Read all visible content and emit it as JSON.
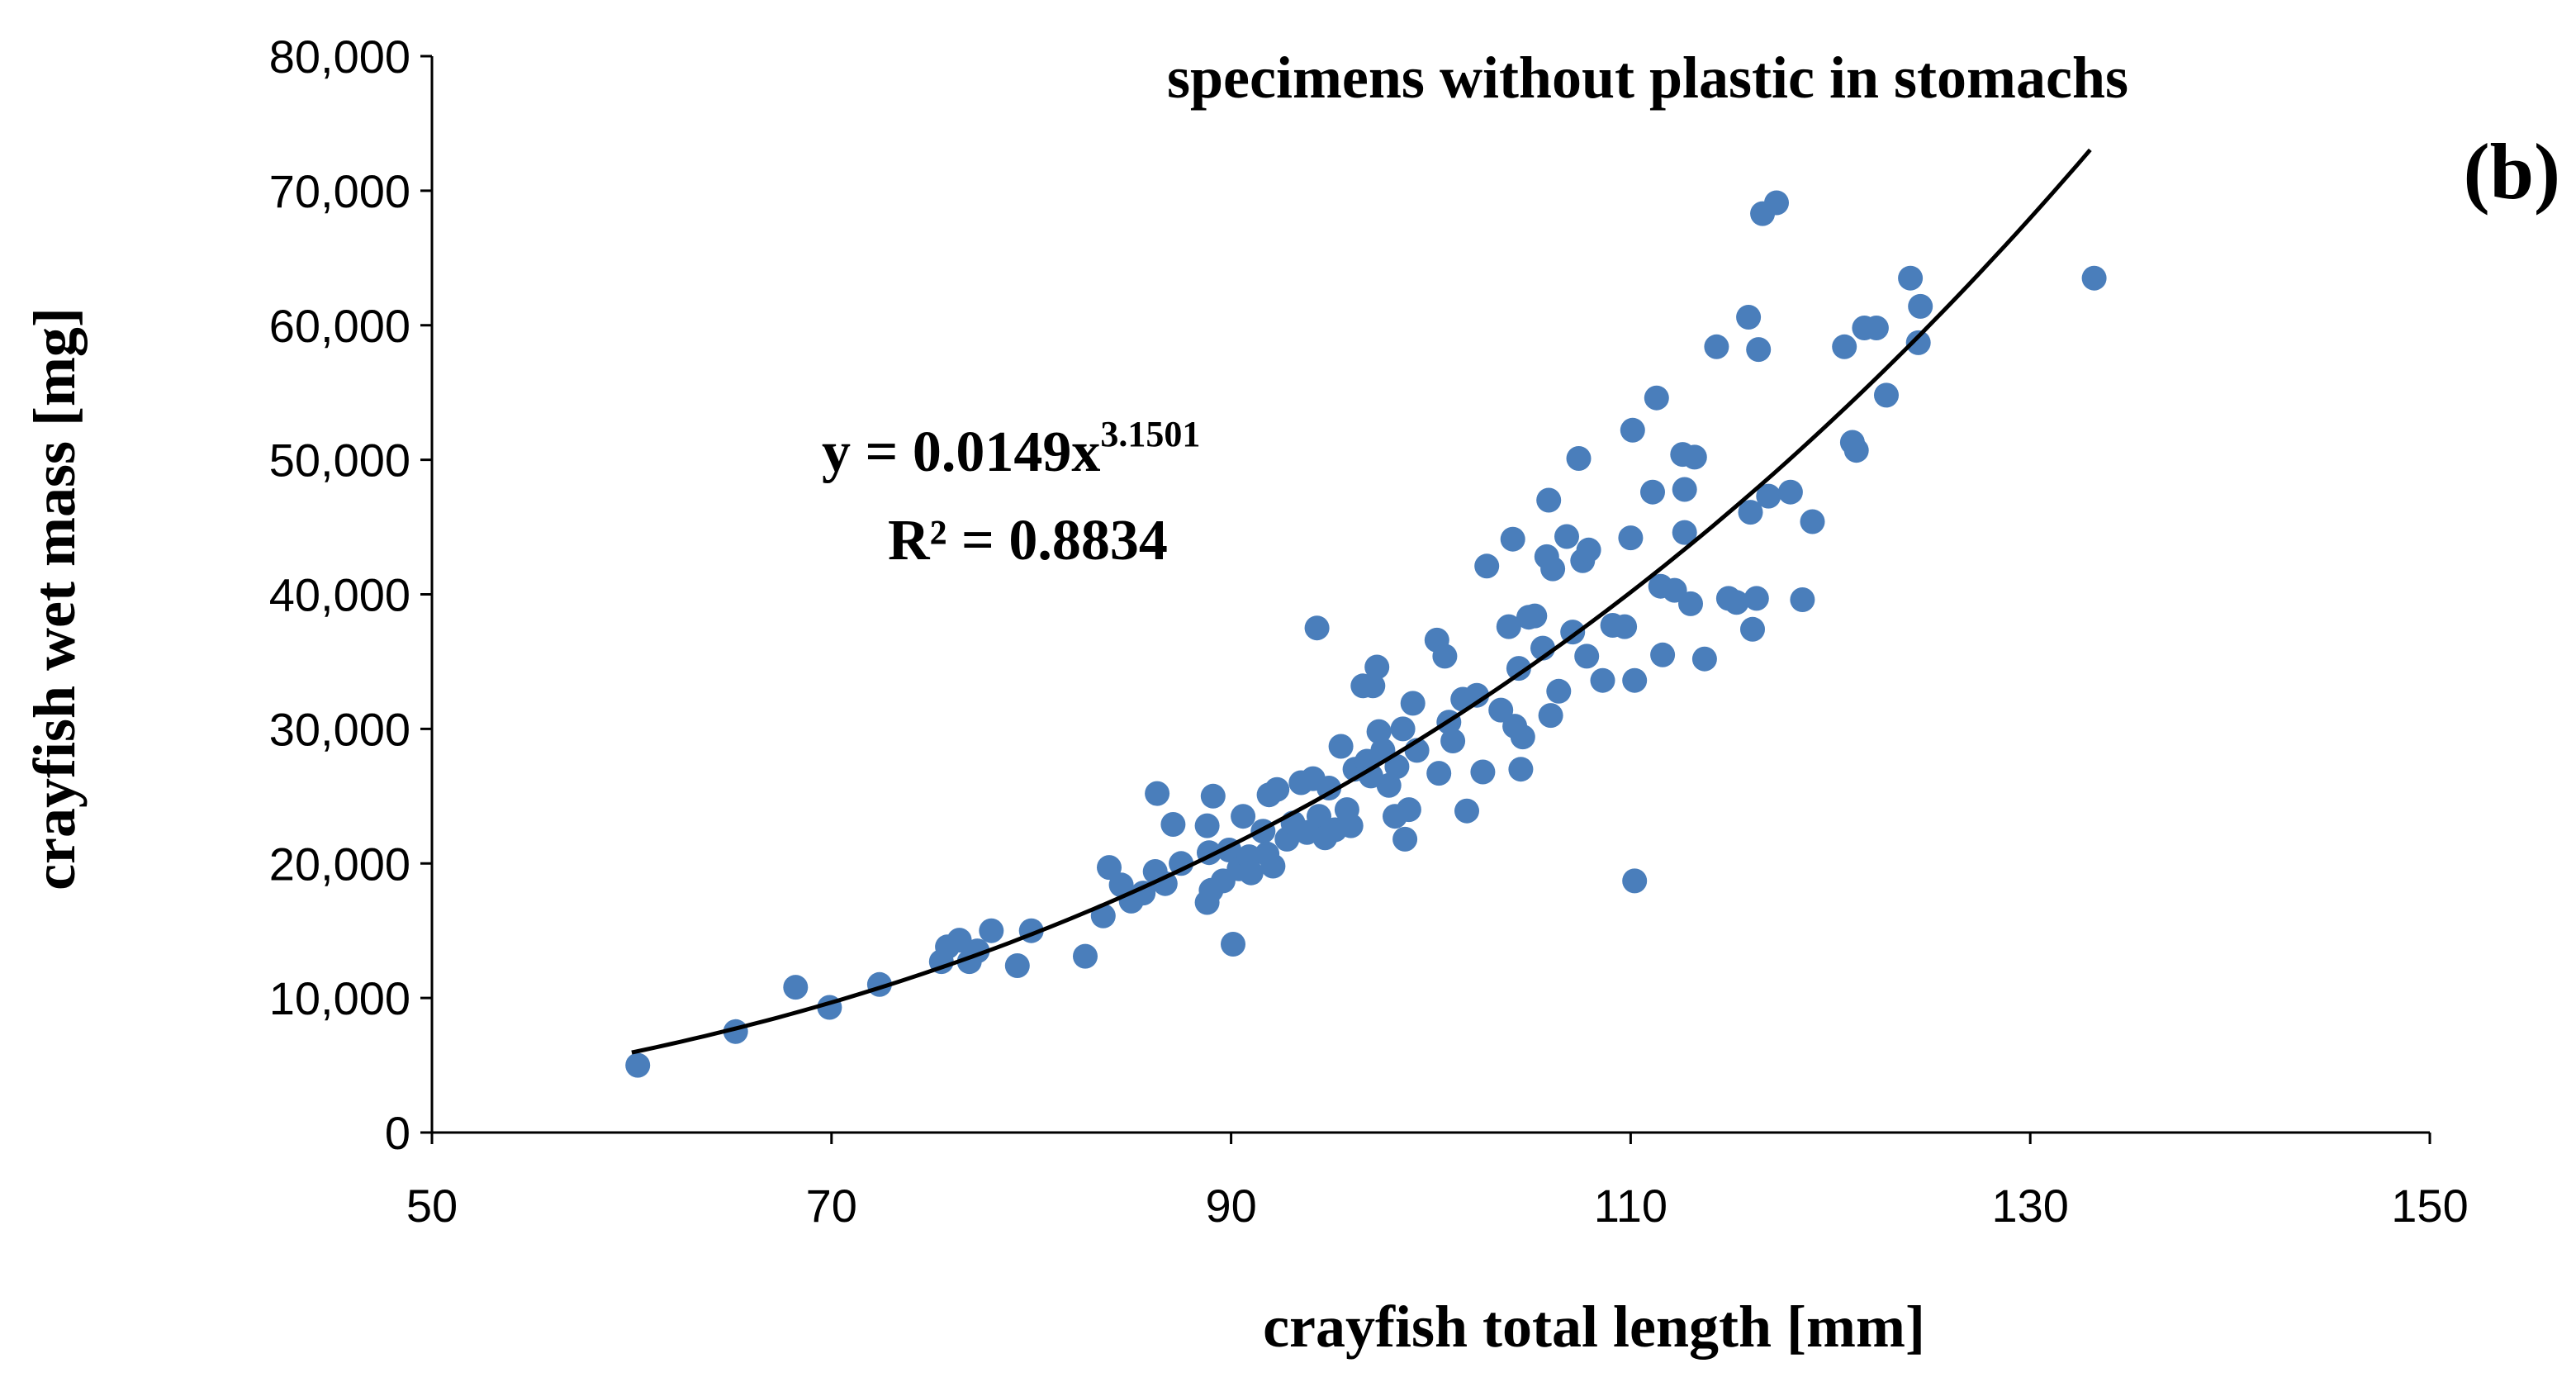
{
  "chart_data": {
    "type": "scatter",
    "title": "specimens without plastic in stomachs",
    "panel_label": "(b)",
    "xlabel": "crayfish total length [mm]",
    "ylabel": "crayfish wet mass [mg]",
    "xlim": [
      50,
      150
    ],
    "ylim": [
      0,
      80000
    ],
    "xticks": [
      50,
      70,
      90,
      110,
      130,
      150
    ],
    "xtick_labels": [
      "50",
      "70",
      "90",
      "110",
      "130",
      "150"
    ],
    "yticks": [
      0,
      10000,
      20000,
      30000,
      40000,
      50000,
      60000,
      70000,
      80000
    ],
    "ytick_labels": [
      "0",
      "10,000",
      "20,000",
      "30,000",
      "40,000",
      "50,000",
      "60,000",
      "70,000",
      "80,000"
    ],
    "grid": false,
    "point_color": "#4a7ebb",
    "trendline": {
      "type": "power",
      "a": 0.0149,
      "b": 3.1501,
      "x_range": [
        60,
        133
      ],
      "equation_prefix": "y = 0.0149x",
      "equation_exponent": "3.1501",
      "r2_label": "R² = 0.8834"
    },
    "points": [
      [
        60.3,
        5000
      ],
      [
        65.2,
        7500
      ],
      [
        68.2,
        10800
      ],
      [
        69.9,
        9300
      ],
      [
        72.4,
        11000
      ],
      [
        75.5,
        12700
      ],
      [
        75.8,
        13800
      ],
      [
        76.4,
        14300
      ],
      [
        76.9,
        12700
      ],
      [
        77.3,
        13500
      ],
      [
        78.0,
        15000
      ],
      [
        79.3,
        12400
      ],
      [
        80.0,
        15000
      ],
      [
        82.7,
        13100
      ],
      [
        83.6,
        16100
      ],
      [
        83.9,
        19700
      ],
      [
        84.5,
        18400
      ],
      [
        85.0,
        17200
      ],
      [
        85.6,
        17800
      ],
      [
        86.2,
        19400
      ],
      [
        86.3,
        25200
      ],
      [
        86.7,
        18500
      ],
      [
        87.1,
        22900
      ],
      [
        87.5,
        20000
      ],
      [
        88.8,
        22800
      ],
      [
        88.8,
        17100
      ],
      [
        88.9,
        20800
      ],
      [
        89.0,
        18000
      ],
      [
        89.1,
        25000
      ],
      [
        89.6,
        18700
      ],
      [
        89.9,
        21000
      ],
      [
        90.1,
        14000
      ],
      [
        90.4,
        19600
      ],
      [
        90.6,
        23500
      ],
      [
        90.9,
        20500
      ],
      [
        91.0,
        19300
      ],
      [
        91.6,
        22400
      ],
      [
        91.8,
        20700
      ],
      [
        91.9,
        25100
      ],
      [
        92.1,
        19800
      ],
      [
        92.3,
        25500
      ],
      [
        92.8,
        21800
      ],
      [
        93.1,
        23000
      ],
      [
        93.5,
        26000
      ],
      [
        93.8,
        22300
      ],
      [
        94.1,
        26300
      ],
      [
        94.3,
        37500
      ],
      [
        94.4,
        23500
      ],
      [
        94.7,
        21900
      ],
      [
        94.9,
        25600
      ],
      [
        95.2,
        22500
      ],
      [
        95.5,
        28700
      ],
      [
        95.8,
        24000
      ],
      [
        96.0,
        22800
      ],
      [
        96.2,
        27000
      ],
      [
        96.6,
        33200
      ],
      [
        96.8,
        27600
      ],
      [
        97.0,
        26500
      ],
      [
        97.1,
        33200
      ],
      [
        97.3,
        34600
      ],
      [
        97.4,
        29800
      ],
      [
        97.6,
        28400
      ],
      [
        97.9,
        25800
      ],
      [
        98.2,
        23500
      ],
      [
        98.3,
        27200
      ],
      [
        98.6,
        30000
      ],
      [
        98.7,
        21800
      ],
      [
        98.9,
        24000
      ],
      [
        99.1,
        31900
      ],
      [
        99.3,
        28400
      ],
      [
        100.3,
        36600
      ],
      [
        100.4,
        26700
      ],
      [
        100.7,
        35400
      ],
      [
        100.9,
        30500
      ],
      [
        101.1,
        29100
      ],
      [
        101.6,
        32200
      ],
      [
        101.8,
        23900
      ],
      [
        102.3,
        32500
      ],
      [
        102.6,
        26800
      ],
      [
        102.8,
        42100
      ],
      [
        103.5,
        31400
      ],
      [
        103.9,
        37600
      ],
      [
        104.1,
        44100
      ],
      [
        104.2,
        30200
      ],
      [
        104.4,
        34500
      ],
      [
        104.5,
        27000
      ],
      [
        104.6,
        29400
      ],
      [
        104.9,
        38300
      ],
      [
        105.2,
        38400
      ],
      [
        105.6,
        36000
      ],
      [
        105.8,
        42800
      ],
      [
        105.9,
        47000
      ],
      [
        106.0,
        31000
      ],
      [
        106.1,
        41900
      ],
      [
        106.4,
        32800
      ],
      [
        106.8,
        44300
      ],
      [
        107.1,
        37200
      ],
      [
        107.4,
        50100
      ],
      [
        107.6,
        42500
      ],
      [
        107.8,
        35400
      ],
      [
        107.9,
        43300
      ],
      [
        108.6,
        33600
      ],
      [
        109.1,
        37700
      ],
      [
        109.7,
        37600
      ],
      [
        110.0,
        44200
      ],
      [
        110.1,
        52200
      ],
      [
        110.2,
        18700
      ],
      [
        110.2,
        33600
      ],
      [
        111.1,
        47600
      ],
      [
        111.3,
        54600
      ],
      [
        111.5,
        40600
      ],
      [
        111.6,
        35500
      ],
      [
        112.2,
        40300
      ],
      [
        112.6,
        50400
      ],
      [
        112.7,
        44600
      ],
      [
        112.7,
        47800
      ],
      [
        113.0,
        39300
      ],
      [
        113.2,
        50200
      ],
      [
        113.7,
        35200
      ],
      [
        114.3,
        58400
      ],
      [
        114.9,
        39700
      ],
      [
        115.3,
        39400
      ],
      [
        115.9,
        60600
      ],
      [
        116.0,
        46100
      ],
      [
        116.1,
        37400
      ],
      [
        116.3,
        39700
      ],
      [
        116.4,
        58200
      ],
      [
        116.6,
        68300
      ],
      [
        116.9,
        47300
      ],
      [
        117.3,
        69100
      ],
      [
        118.0,
        47600
      ],
      [
        118.6,
        39600
      ],
      [
        119.1,
        45400
      ],
      [
        120.7,
        58400
      ],
      [
        121.1,
        51300
      ],
      [
        121.3,
        50700
      ],
      [
        121.7,
        59800
      ],
      [
        122.3,
        59800
      ],
      [
        122.8,
        54800
      ],
      [
        124.0,
        63500
      ],
      [
        124.4,
        58700
      ],
      [
        124.5,
        61400
      ],
      [
        133.2,
        63500
      ]
    ]
  }
}
